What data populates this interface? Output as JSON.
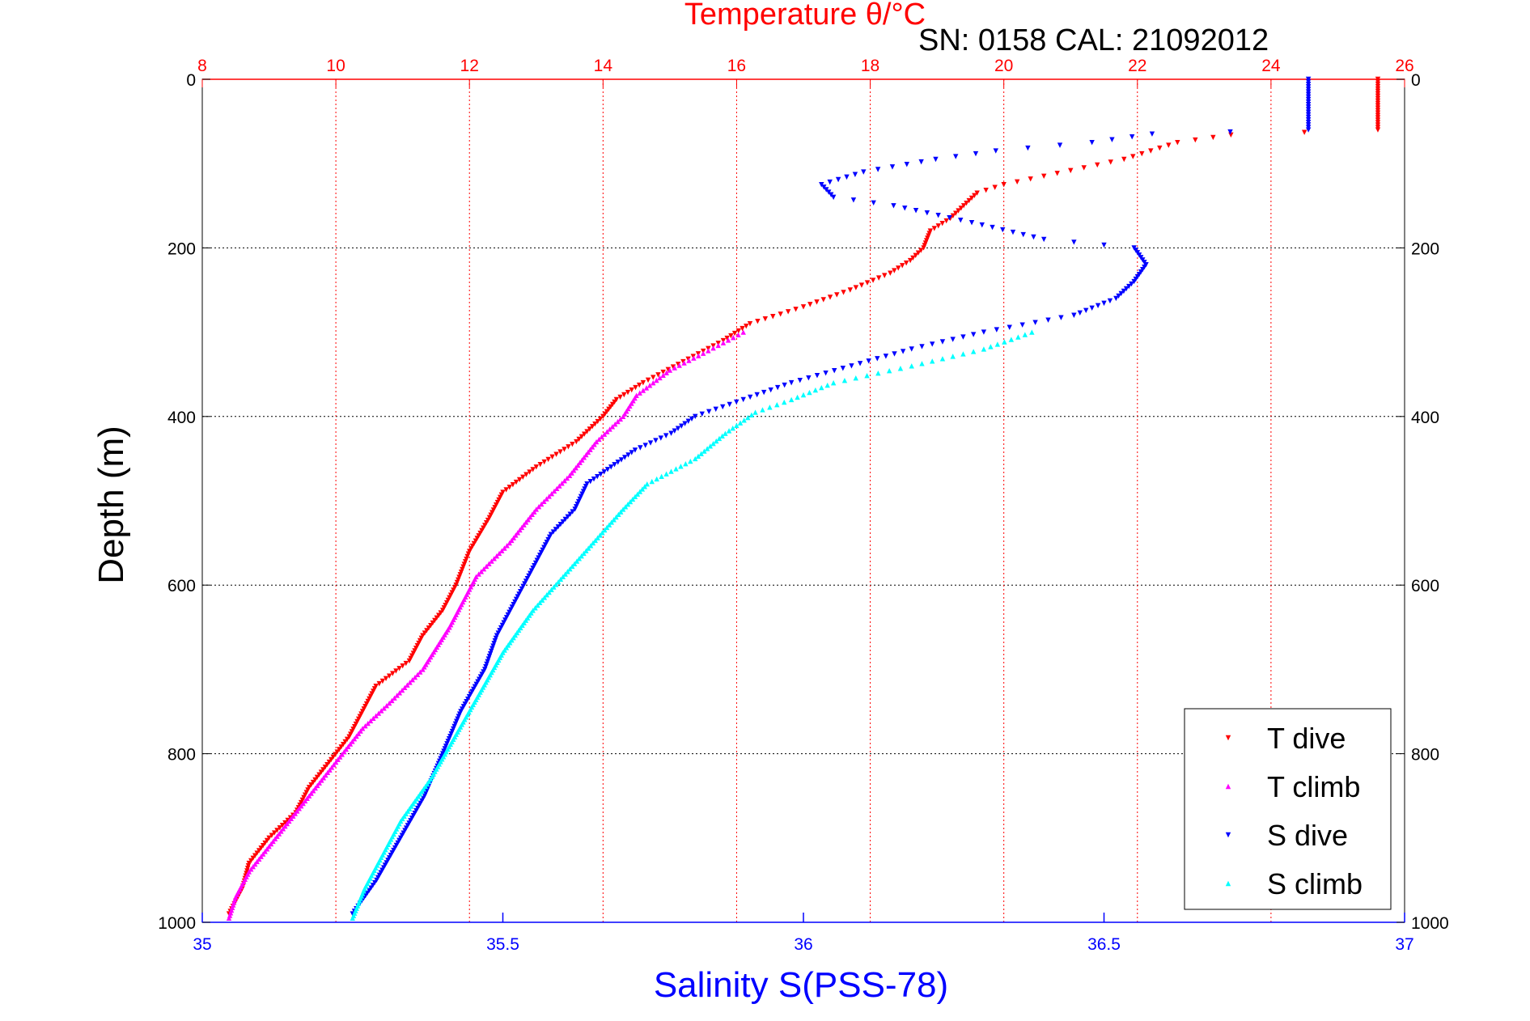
{
  "chart_data": {
    "type": "scatter",
    "title": "Temperature θ/°C",
    "subtitle": "SN: 0158  CAL: 21092012",
    "ylabel": "Depth (m)",
    "xlabel_bottom": "Salinity S(PSS-78)",
    "xlabel_top": "Temperature θ/°C",
    "ylim": [
      0,
      1000
    ],
    "y_reversed": true,
    "xlim_bottom": [
      35,
      37
    ],
    "xlim_top": [
      8,
      26
    ],
    "yticks": [
      "0",
      "200",
      "400",
      "600",
      "800",
      "1000"
    ],
    "yticks_right": [
      "0",
      "200",
      "400",
      "600",
      "800",
      "1000"
    ],
    "xticks_bottom": [
      "35",
      "35.5",
      "36",
      "36.5",
      "37"
    ],
    "xticks_top": [
      "8",
      "10",
      "12",
      "14",
      "16",
      "18",
      "20",
      "22",
      "24",
      "26"
    ],
    "grid": true,
    "legend_position": "bottom-right",
    "colors": {
      "temperature_axis": "#ff0000",
      "salinity_axis": "#0000ff",
      "grid": "#000000"
    },
    "series": [
      {
        "name": "T dive",
        "axis": "top",
        "color": "#ff0000",
        "marker": "triangle-down",
        "points": [
          [
            25.6,
            0
          ],
          [
            25.6,
            20
          ],
          [
            25.6,
            40
          ],
          [
            25.6,
            60
          ],
          [
            23.4,
            66
          ],
          [
            22.6,
            75
          ],
          [
            22.2,
            85
          ],
          [
            21.8,
            95
          ],
          [
            21.2,
            105
          ],
          [
            20.6,
            115
          ],
          [
            20.0,
            125
          ],
          [
            19.6,
            135
          ],
          [
            19.4,
            150
          ],
          [
            19.2,
            165
          ],
          [
            18.9,
            180
          ],
          [
            18.8,
            200
          ],
          [
            18.6,
            215
          ],
          [
            18.3,
            230
          ],
          [
            17.7,
            250
          ],
          [
            17.0,
            270
          ],
          [
            16.2,
            290
          ],
          [
            15.8,
            310
          ],
          [
            15.2,
            335
          ],
          [
            14.6,
            360
          ],
          [
            14.2,
            380
          ],
          [
            14.0,
            400
          ],
          [
            13.6,
            430
          ],
          [
            13.0,
            460
          ],
          [
            12.5,
            490
          ],
          [
            12.3,
            520
          ],
          [
            12.0,
            560
          ],
          [
            11.8,
            600
          ],
          [
            11.6,
            630
          ],
          [
            11.3,
            660
          ],
          [
            11.1,
            690
          ],
          [
            10.6,
            720
          ],
          [
            10.4,
            750
          ],
          [
            10.2,
            780
          ],
          [
            9.9,
            810
          ],
          [
            9.6,
            840
          ],
          [
            9.4,
            870
          ],
          [
            9.0,
            900
          ],
          [
            8.7,
            930
          ],
          [
            8.6,
            960
          ],
          [
            8.4,
            990
          ]
        ]
      },
      {
        "name": "T climb",
        "axis": "top",
        "color": "#ff00ff",
        "marker": "triangle-up",
        "points": [
          [
            16.1,
            300
          ],
          [
            15.5,
            325
          ],
          [
            15.0,
            345
          ],
          [
            14.5,
            375
          ],
          [
            14.3,
            400
          ],
          [
            13.9,
            430
          ],
          [
            13.5,
            470
          ],
          [
            13.0,
            510
          ],
          [
            12.6,
            550
          ],
          [
            12.1,
            590
          ],
          [
            11.9,
            620
          ],
          [
            11.7,
            650
          ],
          [
            11.3,
            700
          ],
          [
            10.8,
            740
          ],
          [
            10.4,
            770
          ],
          [
            10.0,
            810
          ],
          [
            9.6,
            850
          ],
          [
            9.3,
            880
          ],
          [
            9.0,
            910
          ],
          [
            8.7,
            940
          ],
          [
            8.5,
            970
          ],
          [
            8.4,
            995
          ]
        ]
      },
      {
        "name": "S dive",
        "axis": "bottom",
        "color": "#0000ff",
        "marker": "triangle-down",
        "points": [
          [
            36.84,
            0
          ],
          [
            36.84,
            30
          ],
          [
            36.84,
            60
          ],
          [
            36.58,
            65
          ],
          [
            36.48,
            75
          ],
          [
            36.32,
            85
          ],
          [
            36.22,
            95
          ],
          [
            36.1,
            110
          ],
          [
            36.03,
            125
          ],
          [
            36.05,
            140
          ],
          [
            36.15,
            150
          ],
          [
            36.28,
            170
          ],
          [
            36.4,
            190
          ],
          [
            36.55,
            200
          ],
          [
            36.57,
            220
          ],
          [
            36.55,
            240
          ],
          [
            36.52,
            260
          ],
          [
            36.45,
            280
          ],
          [
            36.3,
            300
          ],
          [
            36.18,
            320
          ],
          [
            36.08,
            340
          ],
          [
            35.98,
            360
          ],
          [
            35.9,
            380
          ],
          [
            35.82,
            400
          ],
          [
            35.78,
            420
          ],
          [
            35.72,
            440
          ],
          [
            35.68,
            460
          ],
          [
            35.64,
            480
          ],
          [
            35.62,
            510
          ],
          [
            35.58,
            540
          ],
          [
            35.55,
            580
          ],
          [
            35.52,
            620
          ],
          [
            35.49,
            660
          ],
          [
            35.47,
            700
          ],
          [
            35.43,
            750
          ],
          [
            35.4,
            800
          ],
          [
            35.37,
            850
          ],
          [
            35.33,
            900
          ],
          [
            35.29,
            950
          ],
          [
            35.25,
            990
          ]
        ]
      },
      {
        "name": "S climb",
        "axis": "bottom",
        "color": "#00ffff",
        "marker": "triangle-up",
        "points": [
          [
            36.38,
            300
          ],
          [
            36.3,
            320
          ],
          [
            36.18,
            340
          ],
          [
            36.05,
            360
          ],
          [
            35.98,
            380
          ],
          [
            35.92,
            395
          ],
          [
            35.87,
            420
          ],
          [
            35.82,
            450
          ],
          [
            35.74,
            480
          ],
          [
            35.7,
            510
          ],
          [
            35.65,
            550
          ],
          [
            35.6,
            590
          ],
          [
            35.55,
            630
          ],
          [
            35.5,
            680
          ],
          [
            35.46,
            730
          ],
          [
            35.42,
            780
          ],
          [
            35.38,
            830
          ],
          [
            35.33,
            880
          ],
          [
            35.3,
            920
          ],
          [
            35.27,
            960
          ],
          [
            35.25,
            995
          ]
        ]
      }
    ]
  }
}
